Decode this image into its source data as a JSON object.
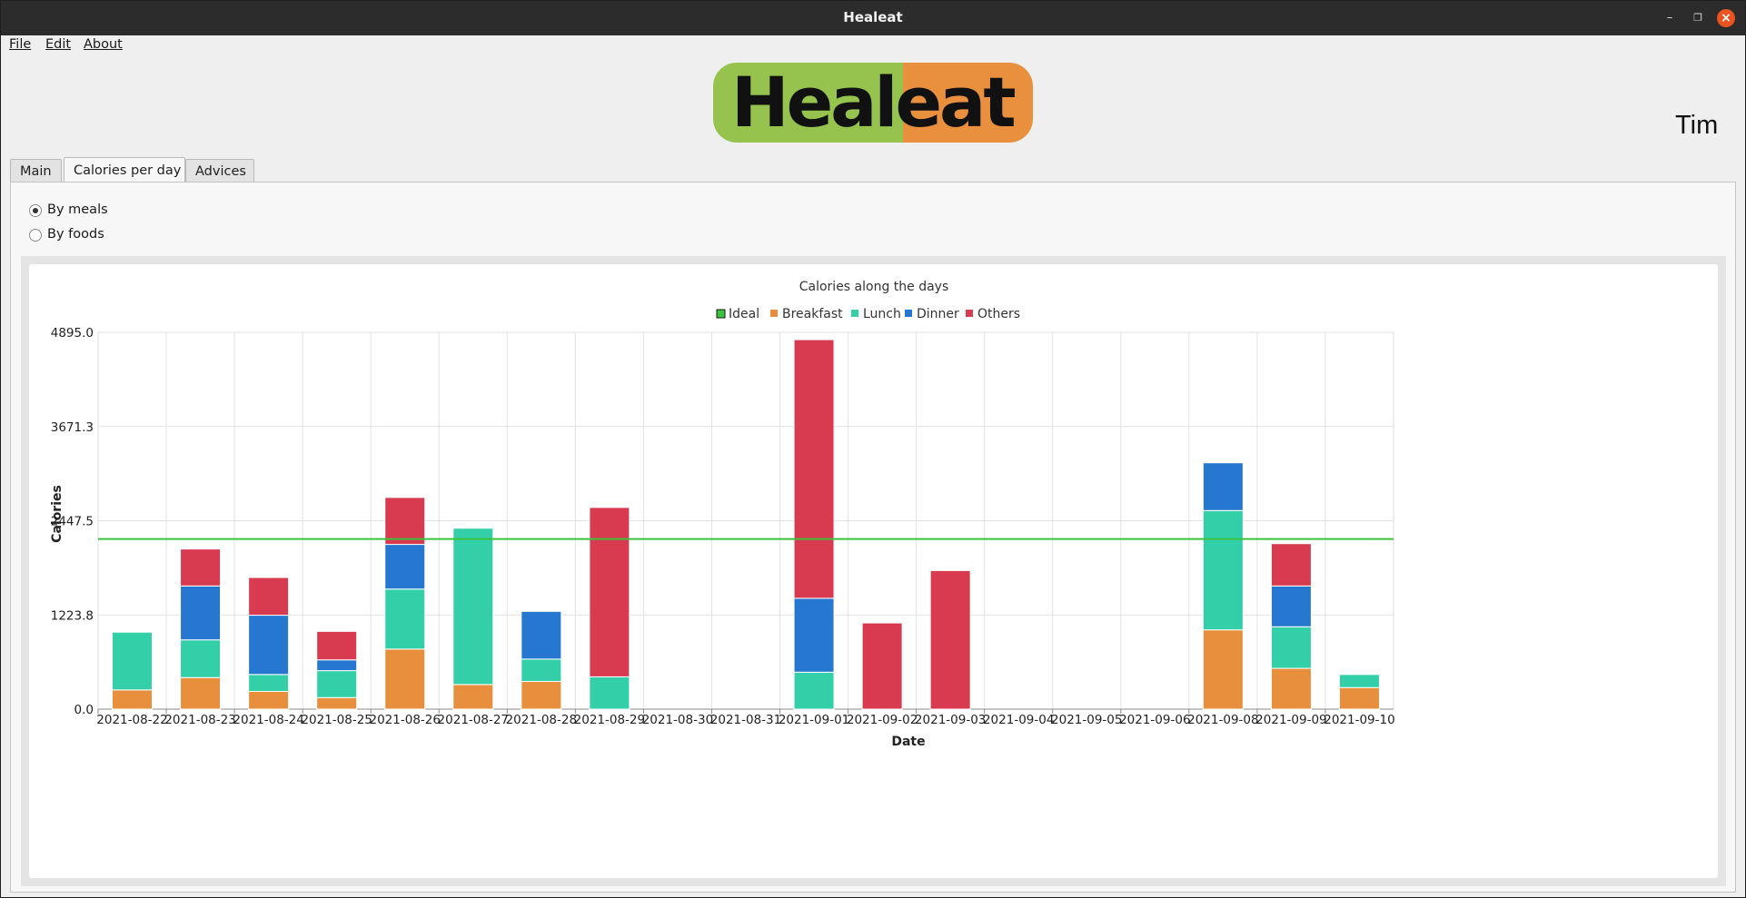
{
  "window": {
    "title": "Healeat"
  },
  "menu": {
    "file": "File",
    "edit": "Edit",
    "about": "About"
  },
  "logo": {
    "left": "Heal",
    "right": "eat"
  },
  "user": {
    "name": "Tim"
  },
  "tabs": [
    {
      "label": "Main",
      "active": false
    },
    {
      "label": "Calories per day",
      "active": true
    },
    {
      "label": "Advices",
      "active": false
    }
  ],
  "options": {
    "by_meals": {
      "label": "By meals",
      "checked": true
    },
    "by_foods": {
      "label": "By foods",
      "checked": false
    }
  },
  "colors": {
    "ideal": "#3cc23c",
    "breakfast": "#e88f3d",
    "lunch": "#32cfa8",
    "dinner": "#2677cf",
    "others": "#d83a50"
  },
  "chart_data": {
    "type": "bar",
    "stacked": true,
    "title": "Calories along the days",
    "xlabel": "Date",
    "ylabel": "Calories",
    "ylim": [
      0,
      4895.0
    ],
    "yticks": [
      "0.0",
      "1223.8",
      "2447.5",
      "3671.3",
      "4895.0"
    ],
    "grid": true,
    "legend_position": "top",
    "legend": [
      "Ideal",
      "Breakfast",
      "Lunch",
      "Dinner",
      "Others"
    ],
    "ideal": 2210,
    "categories": [
      "2021-08-22",
      "2021-08-23",
      "2021-08-24",
      "2021-08-25",
      "2021-08-26",
      "2021-08-27",
      "2021-08-28",
      "2021-08-29",
      "2021-08-30",
      "2021-08-31",
      "2021-09-01",
      "2021-09-02",
      "2021-09-03",
      "2021-09-04",
      "2021-09-05",
      "2021-09-06",
      "2021-09-08",
      "2021-09-09",
      "2021-09-10"
    ],
    "series": [
      {
        "name": "Breakfast",
        "color": "#e88f3d",
        "values": [
          250,
          410,
          230,
          150,
          780,
          320,
          360,
          0,
          0,
          0,
          0,
          0,
          0,
          0,
          0,
          0,
          1030,
          530,
          280
        ]
      },
      {
        "name": "Lunch",
        "color": "#32cfa8",
        "values": [
          750,
          490,
          220,
          350,
          780,
          2030,
          290,
          420,
          0,
          0,
          480,
          0,
          0,
          0,
          0,
          0,
          1550,
          540,
          170
        ]
      },
      {
        "name": "Dinner",
        "color": "#2677cf",
        "values": [
          0,
          700,
          770,
          140,
          580,
          0,
          620,
          0,
          0,
          0,
          960,
          0,
          0,
          0,
          0,
          0,
          620,
          530,
          0
        ]
      },
      {
        "name": "Others",
        "color": "#d83a50",
        "values": [
          0,
          480,
          490,
          370,
          610,
          0,
          0,
          2200,
          0,
          0,
          3360,
          1120,
          1800,
          0,
          0,
          0,
          0,
          550,
          0
        ]
      }
    ]
  }
}
